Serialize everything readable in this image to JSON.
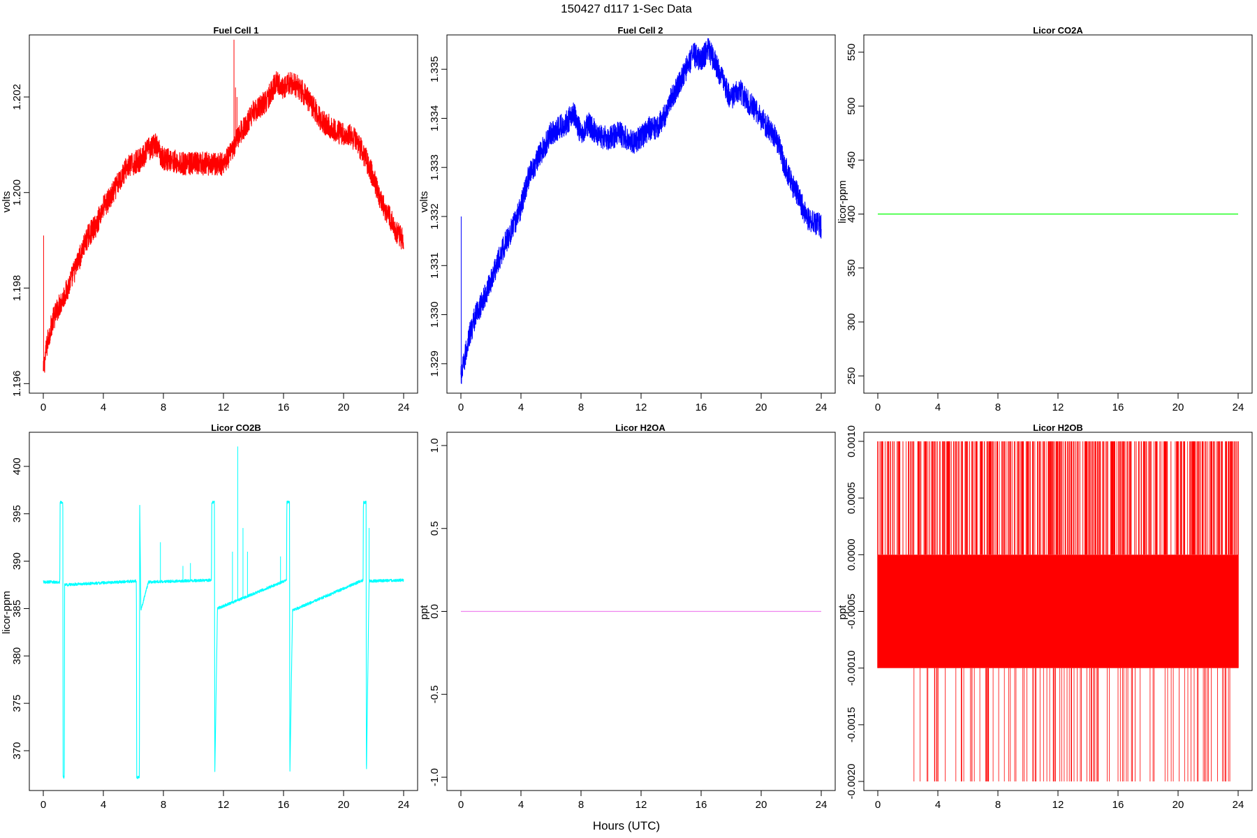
{
  "figure": {
    "title": "150427   d117   1-Sec Data",
    "xlabel": "Hours (UTC)"
  },
  "chart_data": [
    {
      "type": "line",
      "title": "Fuel Cell 1",
      "ylabel": "volts",
      "color": "#ff0000",
      "xlim": [
        0,
        24
      ],
      "ylim": [
        1.1958,
        1.2033
      ],
      "xticks": [
        0,
        4,
        8,
        12,
        16,
        20,
        24
      ],
      "yticks": [
        1.196,
        1.198,
        1.2,
        1.202
      ],
      "ytick_labels": [
        "1.196",
        "1.198",
        "1.200",
        "1.202"
      ],
      "noise": 0.00025,
      "spikes": [
        [
          0.02,
          1.1991
        ],
        [
          12.7,
          1.2032
        ],
        [
          12.8,
          1.2022
        ],
        [
          12.9,
          1.202
        ]
      ],
      "series": [
        {
          "x": [
            0,
            0.1,
            0.3,
            0.6,
            1,
            1.5,
            2,
            2.5,
            3,
            3.5,
            4,
            4.5,
            5,
            5.5,
            6,
            6.5,
            7,
            7.5,
            8,
            8.5,
            9,
            10,
            11,
            12,
            12.5,
            13,
            13.5,
            14,
            14.5,
            15,
            15.5,
            16,
            16.5,
            17,
            17.5,
            18,
            18.5,
            19,
            19.5,
            20,
            20.5,
            21,
            21.5,
            22,
            22.5,
            23,
            23.5,
            24
          ],
          "values": [
            1.1962,
            1.1965,
            1.1969,
            1.1973,
            1.1976,
            1.1979,
            1.1983,
            1.1987,
            1.1991,
            1.1993,
            1.1997,
            1.1999,
            1.2002,
            1.2005,
            1.2006,
            1.2007,
            1.2009,
            1.201,
            1.2007,
            1.2007,
            1.2006,
            1.2006,
            1.2006,
            1.2006,
            1.2008,
            1.2012,
            1.2014,
            1.2017,
            1.2018,
            1.202,
            1.2023,
            1.2022,
            1.2023,
            1.2022,
            1.202,
            1.2018,
            1.2015,
            1.2014,
            1.2013,
            1.2012,
            1.2012,
            1.201,
            1.2007,
            1.2003,
            1.1998,
            1.1995,
            1.1992,
            1.199
          ]
        }
      ]
    },
    {
      "type": "line",
      "title": "Fuel Cell 2",
      "ylabel": "volts",
      "color": "#0000ff",
      "xlim": [
        0,
        24
      ],
      "ylim": [
        1.3284,
        1.3357
      ],
      "xticks": [
        0,
        4,
        8,
        12,
        16,
        20,
        24
      ],
      "yticks": [
        1.329,
        1.33,
        1.331,
        1.332,
        1.333,
        1.334,
        1.335
      ],
      "ytick_labels": [
        "1.329",
        "1.330",
        "1.331",
        "1.332",
        "1.333",
        "1.334",
        "1.335"
      ],
      "noise": 0.00025,
      "spikes": [
        [
          0.02,
          1.332
        ]
      ],
      "series": [
        {
          "x": [
            0,
            0.2,
            0.5,
            1,
            1.5,
            2,
            2.5,
            3,
            3.5,
            4,
            4.5,
            5,
            5.5,
            6,
            6.5,
            7,
            7.5,
            8,
            8.5,
            9,
            9.5,
            10,
            10.5,
            11,
            11.5,
            12,
            12.5,
            13,
            13.5,
            14,
            14.5,
            15,
            15.5,
            16,
            16.5,
            17,
            17.5,
            18,
            18.5,
            19,
            19.5,
            20,
            20.5,
            21,
            21.5,
            22,
            22.5,
            23,
            23.5,
            24
          ],
          "values": [
            1.3287,
            1.329,
            1.3295,
            1.33,
            1.3303,
            1.3307,
            1.3311,
            1.3315,
            1.3318,
            1.3322,
            1.3328,
            1.3331,
            1.3334,
            1.3337,
            1.3338,
            1.3339,
            1.3341,
            1.3337,
            1.3339,
            1.3337,
            1.3336,
            1.3336,
            1.3337,
            1.3336,
            1.3335,
            1.3336,
            1.3338,
            1.3338,
            1.334,
            1.3344,
            1.3347,
            1.335,
            1.3353,
            1.3352,
            1.3354,
            1.3351,
            1.3347,
            1.3344,
            1.3346,
            1.3344,
            1.3342,
            1.334,
            1.3338,
            1.3336,
            1.3331,
            1.3327,
            1.3324,
            1.332,
            1.3319,
            1.3318
          ]
        }
      ]
    },
    {
      "type": "line",
      "title": "Licor CO2A",
      "ylabel": "licor-ppm",
      "color": "#00ff00",
      "xlim": [
        0,
        24
      ],
      "ylim": [
        234,
        566
      ],
      "xticks": [
        0,
        4,
        8,
        12,
        16,
        20,
        24
      ],
      "yticks": [
        250,
        300,
        350,
        400,
        450,
        500,
        550
      ],
      "ytick_labels": [
        "250",
        "300",
        "350",
        "400",
        "450",
        "500",
        "550"
      ],
      "noise": 0,
      "series": [
        {
          "x": [
            0,
            24
          ],
          "values": [
            400,
            400
          ]
        }
      ]
    },
    {
      "type": "line",
      "title": "Licor CO2B",
      "ylabel": "licor-ppm",
      "color": "#00ffff",
      "xlim": [
        0,
        24
      ],
      "ylim": [
        365.8,
        403.6
      ],
      "xticks": [
        0,
        4,
        8,
        12,
        16,
        20,
        24
      ],
      "yticks": [
        370,
        375,
        380,
        385,
        390,
        395,
        400
      ],
      "ytick_labels": [
        "370",
        "375",
        "380",
        "385",
        "390",
        "395",
        "400"
      ],
      "noise": 0.15,
      "spikes": [
        [
          7.8,
          392
        ],
        [
          9.3,
          389.5
        ],
        [
          9.8,
          389.8
        ],
        [
          12.6,
          391
        ],
        [
          12.95,
          402.1
        ],
        [
          13.3,
          393.5
        ],
        [
          13.6,
          391
        ],
        [
          15.8,
          390.5
        ],
        [
          21.7,
          393.5
        ]
      ],
      "series": [
        {
          "x": [
            0,
            1.1,
            1.12,
            1.3,
            1.32,
            1.4,
            1.42,
            1.5,
            6.2,
            6.22,
            6.4,
            6.42,
            6.5,
            7,
            11.2,
            11.22,
            11.4,
            11.42,
            11.6,
            16.2,
            16.22,
            16.4,
            16.42,
            16.6,
            21.3,
            21.32,
            21.5,
            21.52,
            21.7,
            24
          ],
          "values": [
            387.8,
            387.8,
            396.2,
            396.2,
            367.2,
            367.2,
            387.6,
            387.5,
            387.9,
            367.2,
            367.2,
            396.2,
            384.8,
            387.8,
            388.0,
            396.2,
            396.2,
            367.2,
            385.0,
            388.0,
            396.2,
            396.2,
            367.2,
            384.8,
            388.0,
            396.2,
            396.2,
            367.2,
            387.9,
            388.0
          ]
        }
      ]
    },
    {
      "type": "line",
      "title": "Licor H2OA",
      "ylabel": "ppt",
      "color": "#ee82ee",
      "xlim": [
        0,
        24
      ],
      "ylim": [
        -1.08,
        1.08
      ],
      "xticks": [
        0,
        4,
        8,
        12,
        16,
        20,
        24
      ],
      "yticks": [
        -1.0,
        -0.5,
        0.0,
        0.5,
        1.0
      ],
      "ytick_labels": [
        "-1.0",
        "-0.5",
        "0.0",
        "0.5",
        "1.0"
      ],
      "noise": 0,
      "series": [
        {
          "x": [
            0,
            24
          ],
          "values": [
            0,
            0
          ]
        }
      ]
    },
    {
      "type": "line",
      "title": "Licor H2OB",
      "ylabel": "ppt",
      "color": "#ff0000",
      "xlim": [
        0,
        24
      ],
      "ylim": [
        -0.00208,
        0.00108
      ],
      "xticks": [
        0,
        4,
        8,
        12,
        16,
        20,
        24
      ],
      "yticks": [
        -0.002,
        -0.0015,
        -0.001,
        -0.0005,
        0.0,
        0.0005,
        0.001
      ],
      "ytick_labels": [
        "-0.0020",
        "-0.0015",
        "-0.0010",
        "-0.0005",
        "0.0000",
        "0.0005",
        "0.0010"
      ],
      "noise": 0,
      "levels": [
        -0.002,
        -0.001,
        0.0,
        0.001
      ],
      "band": [
        -0.001,
        0.0
      ],
      "series": [
        {
          "x": [
            0,
            24
          ],
          "values": [
            0,
            0
          ]
        }
      ]
    }
  ]
}
